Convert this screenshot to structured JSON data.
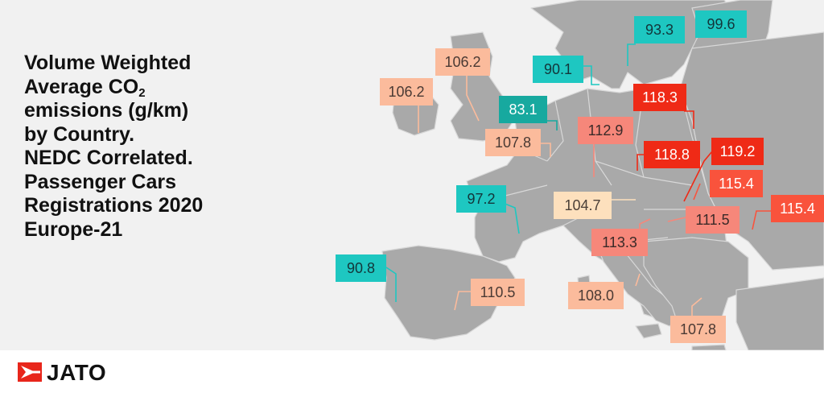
{
  "title": {
    "lines": [
      "Volume Weighted",
      "emissions (g/km)",
      "by Country.",
      "NEDC Correlated.",
      "Passenger Cars",
      "Registrations 2020",
      "Europe-21"
    ],
    "co2_prefix": "Average CO",
    "co2_sub": "2"
  },
  "colors": {
    "background": "#f1f1f1",
    "land": "#a9a9a9",
    "border": "#d8d8d8",
    "teal": "#1ec7c1",
    "red": "#ef2a16"
  },
  "country_labels": [
    {
      "id": "ireland",
      "value": "106.2"
    },
    {
      "id": "uk",
      "value": "106.2"
    },
    {
      "id": "netherlands",
      "value": "83.1"
    },
    {
      "id": "belgium",
      "value": "107.8"
    },
    {
      "id": "denmark",
      "value": "90.1"
    },
    {
      "id": "sweden",
      "value": "93.3"
    },
    {
      "id": "finland",
      "value": "99.6"
    },
    {
      "id": "germany",
      "value": "112.9"
    },
    {
      "id": "poland",
      "value": "118.3"
    },
    {
      "id": "czechia",
      "value": "118.8"
    },
    {
      "id": "slovakia",
      "value": "119.2"
    },
    {
      "id": "hungary",
      "value": "115.4"
    },
    {
      "id": "romania",
      "value": "115.4"
    },
    {
      "id": "croatia",
      "value": "111.5"
    },
    {
      "id": "france",
      "value": "97.2"
    },
    {
      "id": "switzerland",
      "value": "104.7"
    },
    {
      "id": "slovenia",
      "value": "113.3"
    },
    {
      "id": "portugal",
      "value": "90.8"
    },
    {
      "id": "spain",
      "value": "110.5"
    },
    {
      "id": "italy",
      "value": "108.0"
    },
    {
      "id": "greece",
      "value": "107.8"
    }
  ],
  "footer": {
    "logo_text": "JATO"
  }
}
